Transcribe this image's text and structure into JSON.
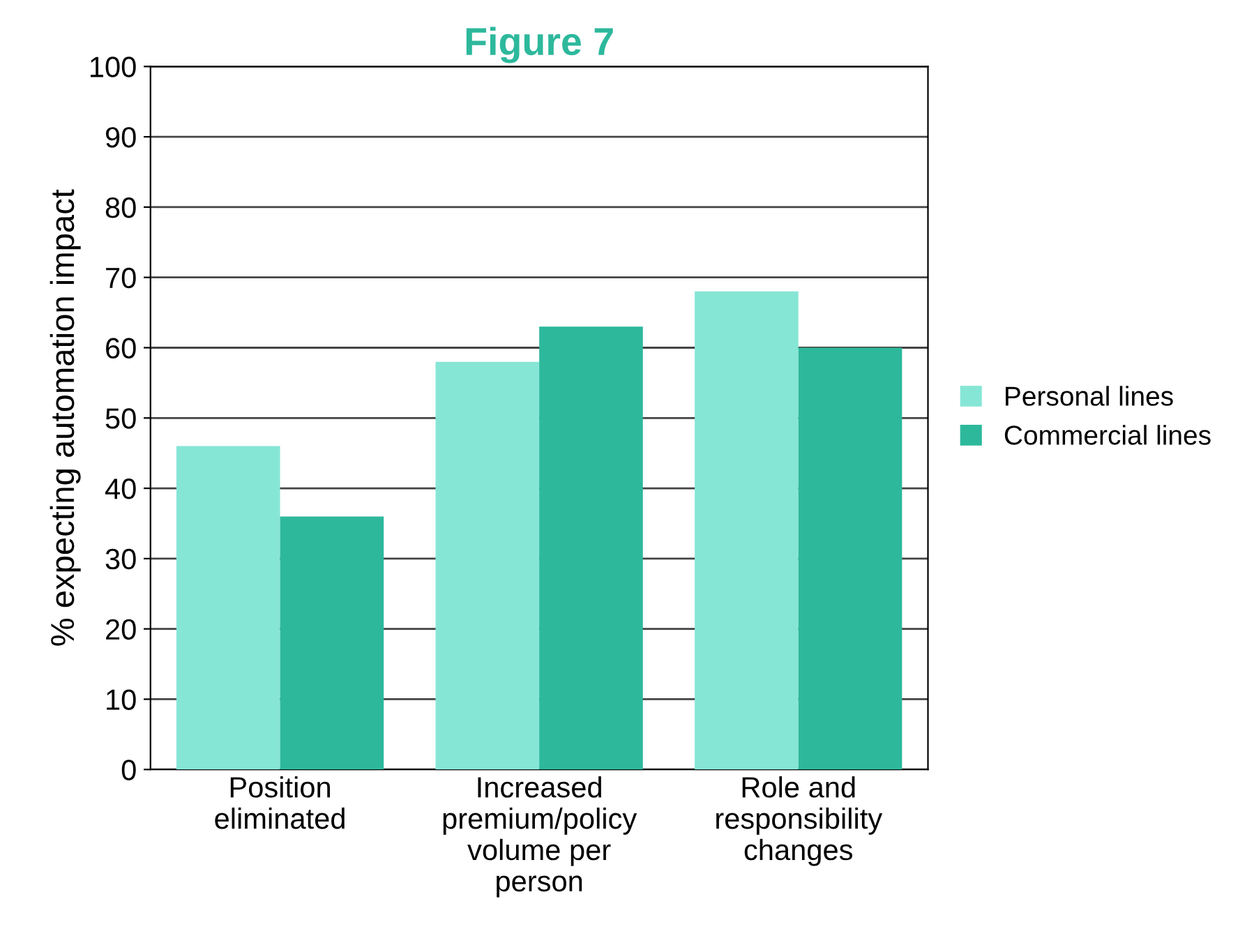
{
  "chart_data": {
    "type": "bar",
    "title": "Figure 7",
    "ylabel": "% expecting automation impact",
    "categories": [
      "Position\neliminated",
      "Increased\npremium/policy\nvolume per\nperson",
      "Role and\nresponsibility\nchanges"
    ],
    "series": [
      {
        "name": "Personal lines",
        "color": "#86e6d6",
        "values": [
          46,
          58,
          68
        ]
      },
      {
        "name": "Commercial lines",
        "color": "#2db89c",
        "values": [
          36,
          63,
          60
        ]
      }
    ],
    "ylim": [
      0,
      100
    ],
    "yticks": [
      0,
      10,
      20,
      30,
      40,
      50,
      60,
      70,
      80,
      90,
      100
    ],
    "grid": "y",
    "legend": "right"
  }
}
